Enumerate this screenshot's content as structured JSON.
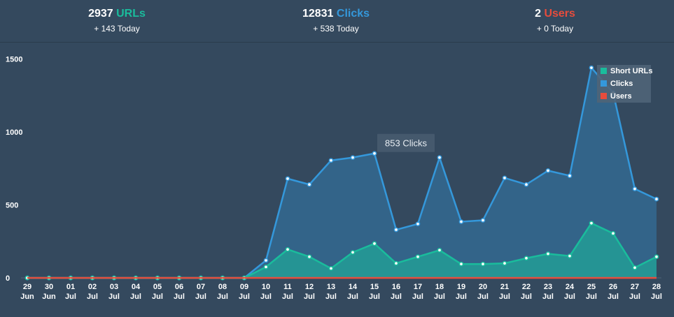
{
  "stats": {
    "urls": {
      "count": "2937",
      "label": "URLs",
      "today": "+ 143 Today",
      "color": "#1abc9c"
    },
    "clicks": {
      "count": "12831",
      "label": "Clicks",
      "today": "+ 538 Today",
      "color": "#3498db"
    },
    "users": {
      "count": "2",
      "label": "Users",
      "today": "+ 0 Today",
      "color": "#e74c3c"
    }
  },
  "tooltip": "853 Clicks",
  "chart_data": {
    "type": "area",
    "x_days": [
      "29",
      "30",
      "01",
      "02",
      "03",
      "04",
      "05",
      "06",
      "07",
      "08",
      "09",
      "10",
      "11",
      "12",
      "13",
      "14",
      "15",
      "16",
      "17",
      "18",
      "19",
      "20",
      "21",
      "22",
      "23",
      "24",
      "25",
      "26",
      "27",
      "28"
    ],
    "x_months": [
      "Jun",
      "Jun",
      "Jul",
      "Jul",
      "Jul",
      "Jul",
      "Jul",
      "Jul",
      "Jul",
      "Jul",
      "Jul",
      "Jul",
      "Jul",
      "Jul",
      "Jul",
      "Jul",
      "Jul",
      "Jul",
      "Jul",
      "Jul",
      "Jul",
      "Jul",
      "Jul",
      "Jul",
      "Jul",
      "Jul",
      "Jul",
      "Jul",
      "Jul",
      "Jul"
    ],
    "ylim": [
      0,
      1500
    ],
    "yticks": [
      0,
      500,
      1000,
      1500
    ],
    "legend_position": "top-right",
    "series": [
      {
        "name": "Short URLs",
        "color": "#1abc9c",
        "values": [
          0,
          0,
          0,
          0,
          0,
          0,
          0,
          0,
          0,
          0,
          0,
          75,
          195,
          145,
          65,
          175,
          235,
          100,
          145,
          190,
          95,
          95,
          100,
          135,
          165,
          150,
          375,
          305,
          70,
          145
        ]
      },
      {
        "name": "Clicks",
        "color": "#3498db",
        "values": [
          0,
          0,
          0,
          0,
          0,
          0,
          0,
          0,
          0,
          0,
          0,
          120,
          680,
          640,
          805,
          825,
          853,
          330,
          370,
          825,
          385,
          395,
          685,
          640,
          735,
          700,
          1440,
          1270,
          610,
          540
        ]
      },
      {
        "name": "Users",
        "color": "#e74c3c",
        "values": [
          0,
          0,
          0,
          0,
          0,
          0,
          0,
          0,
          0,
          0,
          0,
          0,
          0,
          0,
          0,
          0,
          0,
          0,
          0,
          0,
          0,
          0,
          0,
          0,
          0,
          0,
          0,
          0,
          0,
          0
        ]
      }
    ]
  }
}
